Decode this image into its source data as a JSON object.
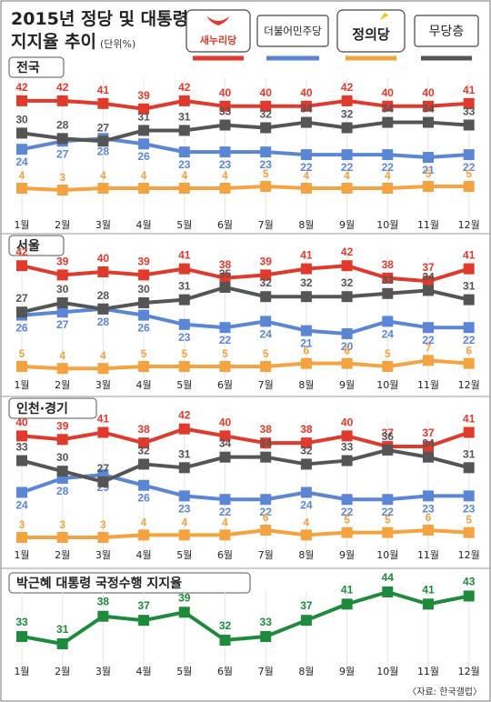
{
  "title": "2015년 정당 및 대통령",
  "title_line2": "지지율 추이",
  "unit": "(단위%)",
  "source": "〈자료: 한국갤럽〉",
  "legend": [
    {
      "label": "새누리당",
      "color": "#e03a2c",
      "icon": "saenuri-logo-icon"
    },
    {
      "label": "더불어민주당",
      "color": "#5b86d6",
      "icon": "minju-badge-icon"
    },
    {
      "label": "정의당",
      "color": "#f4a340",
      "icon": "justice-logo-icon"
    },
    {
      "label": "무당층",
      "color": "#555555",
      "icon": "independent-badge-icon"
    }
  ],
  "colors": {
    "saenuri": "#e03a2c",
    "minju": "#5b86d6",
    "justice": "#f4a340",
    "independent": "#555555",
    "president": "#1e8a3c"
  },
  "chart_data": [
    {
      "type": "line",
      "panel_label": "전국",
      "categories": [
        "1월",
        "2월",
        "3월",
        "4월",
        "5월",
        "6월",
        "7월",
        "8월",
        "9월",
        "10월",
        "11월",
        "12월"
      ],
      "series": [
        {
          "name": "새누리당",
          "values": [
            42,
            42,
            41,
            39,
            42,
            40,
            40,
            40,
            42,
            40,
            40,
            41
          ]
        },
        {
          "name": "더불어민주당",
          "values": [
            24,
            27,
            28,
            26,
            23,
            23,
            23,
            22,
            22,
            22,
            21,
            22
          ]
        },
        {
          "name": "정의당",
          "values": [
            4,
            3,
            4,
            4,
            4,
            4,
            5,
            4,
            4,
            4,
            5,
            5
          ]
        },
        {
          "name": "무당층",
          "values": [
            30,
            28,
            27,
            31,
            31,
            33,
            32,
            34,
            32,
            34,
            34,
            33
          ]
        }
      ]
    },
    {
      "type": "line",
      "panel_label": "서울",
      "categories": [
        "1월",
        "2월",
        "3월",
        "4월",
        "5월",
        "6월",
        "7월",
        "8월",
        "9월",
        "10월",
        "11월",
        "12월"
      ],
      "series": [
        {
          "name": "새누리당",
          "values": [
            42,
            39,
            40,
            39,
            41,
            38,
            39,
            41,
            42,
            38,
            37,
            41
          ]
        },
        {
          "name": "더불어민주당",
          "values": [
            26,
            27,
            28,
            26,
            23,
            22,
            24,
            21,
            20,
            24,
            22,
            22
          ]
        },
        {
          "name": "정의당",
          "values": [
            5,
            4,
            4,
            5,
            5,
            5,
            5,
            6,
            6,
            5,
            7,
            6
          ]
        },
        {
          "name": "무당층",
          "values": [
            27,
            30,
            28,
            30,
            31,
            35,
            32,
            32,
            32,
            33,
            34,
            31
          ]
        }
      ]
    },
    {
      "type": "line",
      "panel_label": "인천·경기",
      "categories": [
        "1월",
        "2월",
        "3월",
        "4월",
        "5월",
        "6월",
        "7월",
        "8월",
        "9월",
        "10월",
        "11월",
        "12월"
      ],
      "series": [
        {
          "name": "새누리당",
          "values": [
            40,
            39,
            41,
            38,
            42,
            40,
            38,
            38,
            40,
            37,
            37,
            41
          ]
        },
        {
          "name": "더불어민주당",
          "values": [
            24,
            28,
            29,
            26,
            23,
            22,
            22,
            24,
            22,
            22,
            23,
            23
          ]
        },
        {
          "name": "정의당",
          "values": [
            3,
            3,
            3,
            4,
            4,
            4,
            6,
            4,
            5,
            5,
            6,
            5
          ]
        },
        {
          "name": "무당층",
          "values": [
            33,
            30,
            27,
            32,
            31,
            34,
            34,
            32,
            33,
            36,
            34,
            31
          ]
        }
      ]
    },
    {
      "type": "line",
      "panel_label": "박근혜 대통령 국정수행 지지율",
      "categories": [
        "1월",
        "2월",
        "3월",
        "4월",
        "5월",
        "6월",
        "7월",
        "8월",
        "9월",
        "10월",
        "11월",
        "12월"
      ],
      "series": [
        {
          "name": "박근혜 대통령 국정수행 지지율",
          "values": [
            33,
            31,
            38,
            37,
            39,
            32,
            33,
            37,
            41,
            44,
            41,
            43
          ]
        }
      ]
    }
  ]
}
